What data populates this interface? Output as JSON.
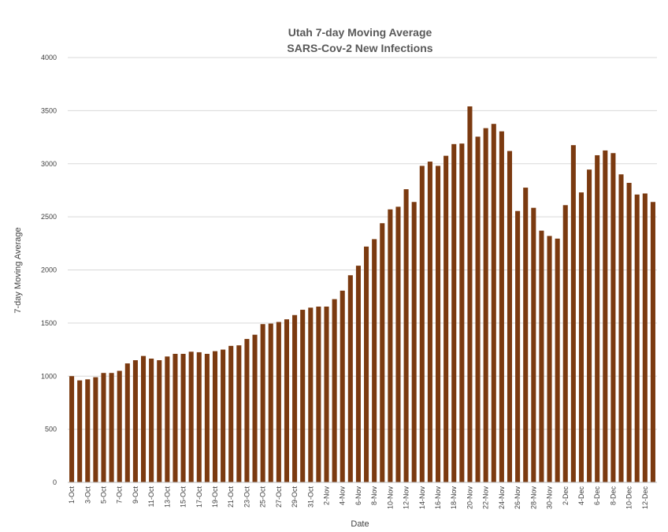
{
  "chart_data": {
    "type": "bar",
    "title": "Utah 7-day Moving Average",
    "subtitle": "SARS-Cov-2 New Infections",
    "xlabel": "Date",
    "ylabel": "7-day Moving Average",
    "ylim": [
      0,
      4000
    ],
    "yticks": [
      0,
      500,
      1000,
      1500,
      2000,
      2500,
      3000,
      3500,
      4000
    ],
    "grid": true,
    "legend": "none",
    "bar_color": "#7b3a10",
    "grid_color": "#d9d9d9",
    "categories": [
      "1-Oct",
      "2-Oct",
      "3-Oct",
      "4-Oct",
      "5-Oct",
      "6-Oct",
      "7-Oct",
      "8-Oct",
      "9-Oct",
      "10-Oct",
      "11-Oct",
      "12-Oct",
      "13-Oct",
      "14-Oct",
      "15-Oct",
      "16-Oct",
      "17-Oct",
      "18-Oct",
      "19-Oct",
      "20-Oct",
      "21-Oct",
      "22-Oct",
      "23-Oct",
      "24-Oct",
      "25-Oct",
      "26-Oct",
      "27-Oct",
      "28-Oct",
      "29-Oct",
      "30-Oct",
      "31-Oct",
      "1-Nov",
      "2-Nov",
      "3-Nov",
      "4-Nov",
      "5-Nov",
      "6-Nov",
      "7-Nov",
      "8-Nov",
      "9-Nov",
      "10-Nov",
      "11-Nov",
      "12-Nov",
      "13-Nov",
      "14-Nov",
      "15-Nov",
      "16-Nov",
      "17-Nov",
      "18-Nov",
      "19-Nov",
      "20-Nov",
      "21-Nov",
      "22-Nov",
      "23-Nov",
      "24-Nov",
      "25-Nov",
      "26-Nov",
      "27-Nov",
      "28-Nov",
      "29-Nov",
      "30-Nov",
      "1-Dec",
      "2-Dec",
      "3-Dec",
      "4-Dec",
      "5-Dec",
      "6-Dec",
      "7-Dec",
      "8-Dec",
      "9-Dec",
      "10-Dec",
      "11-Dec",
      "12-Dec",
      "13-Dec"
    ],
    "tick_labels": [
      "1-Oct",
      "3-Oct",
      "5-Oct",
      "7-Oct",
      "9-Oct",
      "11-Oct",
      "13-Oct",
      "15-Oct",
      "17-Oct",
      "19-Oct",
      "21-Oct",
      "23-Oct",
      "25-Oct",
      "27-Oct",
      "29-Oct",
      "31-Oct",
      "2-Nov",
      "4-Nov",
      "6-Nov",
      "8-Nov",
      "10-Nov",
      "12-Nov",
      "14-Nov",
      "16-Nov",
      "18-Nov",
      "20-Nov",
      "22-Nov",
      "24-Nov",
      "26-Nov",
      "28-Nov",
      "30-Nov",
      "2-Dec",
      "4-Dec",
      "6-Dec",
      "8-Dec",
      "10-Dec",
      "12-Dec"
    ],
    "values": [
      1000,
      960,
      970,
      990,
      1030,
      1030,
      1050,
      1120,
      1150,
      1190,
      1165,
      1150,
      1185,
      1210,
      1210,
      1230,
      1225,
      1210,
      1235,
      1250,
      1285,
      1290,
      1350,
      1390,
      1490,
      1495,
      1510,
      1535,
      1575,
      1625,
      1645,
      1655,
      1655,
      1725,
      1805,
      1950,
      2040,
      2220,
      2290,
      2440,
      2570,
      2595,
      2760,
      2640,
      2980,
      3020,
      2980,
      3075,
      3185,
      3190,
      3540,
      3255,
      3335,
      3375,
      3305,
      3120,
      2555,
      2775,
      2585,
      2370,
      2320,
      2295,
      2610,
      3175,
      2730,
      2945,
      3080,
      3125,
      3100,
      2900,
      2820,
      2710,
      2720,
      2640
    ]
  }
}
